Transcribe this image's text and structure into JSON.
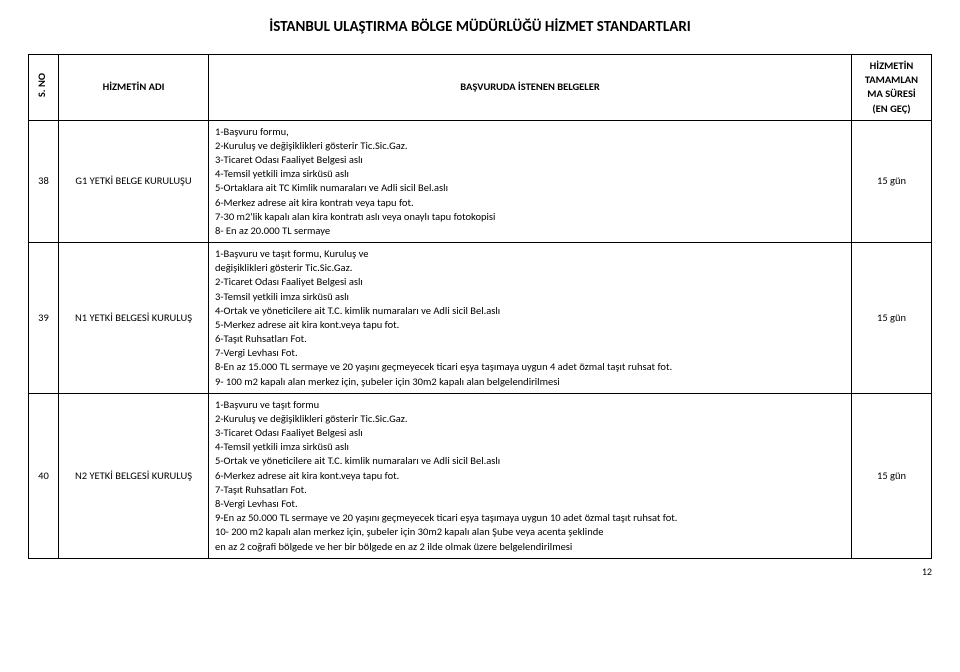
{
  "title": "İSTANBUL ULAŞTIRMA BÖLGE MÜDÜRLÜĞÜ HİZMET STANDARTLARI",
  "columns": {
    "no": "S. NO",
    "name": "HİZMETİN ADI",
    "docs": "BAŞVURUDA İSTENEN BELGELER",
    "duration_l1": "HİZMETİN",
    "duration_l2": "TAMAMLAN",
    "duration_l3": "MA SÜRESİ",
    "duration_l4": "(EN GEÇ)"
  },
  "rows": [
    {
      "no": "38",
      "name": "G1 YETKİ BELGE KURULUŞU",
      "duration": "15 gün",
      "docs": [
        "1-Başvuru  formu,",
        " 2-Kuruluş ve değişiklikleri gösterir Tic.Sic.Gaz.",
        "3-Ticaret Odası Faaliyet Belgesi aslı",
        "4-Temsil yetkili imza sirküsü aslı",
        "5-Ortaklara ait TC Kimlik numaraları  ve Adli sicil Bel.aslı",
        "6-Merkez adrese ait kira kontratı veya tapu fot.",
        "7-30 m2'lik kapalı alan kira kontratı aslı veya onaylı tapu fotokopisi",
        "8- En az 20.000 TL sermaye"
      ]
    },
    {
      "no": "39",
      "name": "N1 YETKİ BELGESİ KURULUŞ",
      "duration": "15 gün",
      "docs": [
        "1-Başvuru ve taşıt formu, Kuruluş ve",
        "değişiklikleri gösterir Tic.Sic.Gaz.",
        "2-Ticaret Odası Faaliyet Belgesi aslı",
        "3-Temsil yetkili imza sirküsü aslı",
        "4-Ortak ve yöneticilere ait T.C. kimlik numaraları ve Adli sicil Bel.aslı",
        "5-Merkez adrese ait kira kont.veya tapu fot.",
        "6-Taşıt Ruhsatları Fot.",
        "7-Vergi Levhası Fot.",
        "8-En az 15.000 TL sermaye ve 20 yaşını geçmeyecek ticari eşya taşımaya uygun 4 adet özmal taşıt ruhsat fot.",
        "9- 100 m2 kapalı alan merkez için, şubeler için 30m2 kapalı alan belgelendirilmesi"
      ]
    },
    {
      "no": "40",
      "name": "N2 YETKİ BELGESİ KURULUŞ",
      "duration": "15 gün",
      "docs": [
        "1-Başvuru ve taşıt formu",
        "2-Kuruluş ve değişiklikleri gösterir Tic.Sic.Gaz.",
        "3-Ticaret Odası Faaliyet Belgesi aslı",
        "4-Temsil yetkili imza sirküsü aslı",
        "5-Ortak ve yöneticilere ait T.C. kimlik numaraları ve Adli sicil Bel.aslı",
        "6-Merkez adrese ait kira kont.veya tapu fot.",
        "7-Taşıt Ruhsatları Fot.",
        "8-Vergi Levhası Fot.",
        "9-En az 50.000 TL sermaye ve 20 yaşını geçmeyecek ticari eşya taşımaya  uygun 10 adet özmal taşıt ruhsat fot.",
        "10- 200 m2 kapalı alan merkez için, şubeler için 30m2 kapalı alan Şube veya acenta şeklinde",
        "en az 2 coğrafi bölgede ve her bir bölgede en az 2 ilde olmak üzere belgelendirilmesi"
      ]
    }
  ],
  "page_number": "12"
}
